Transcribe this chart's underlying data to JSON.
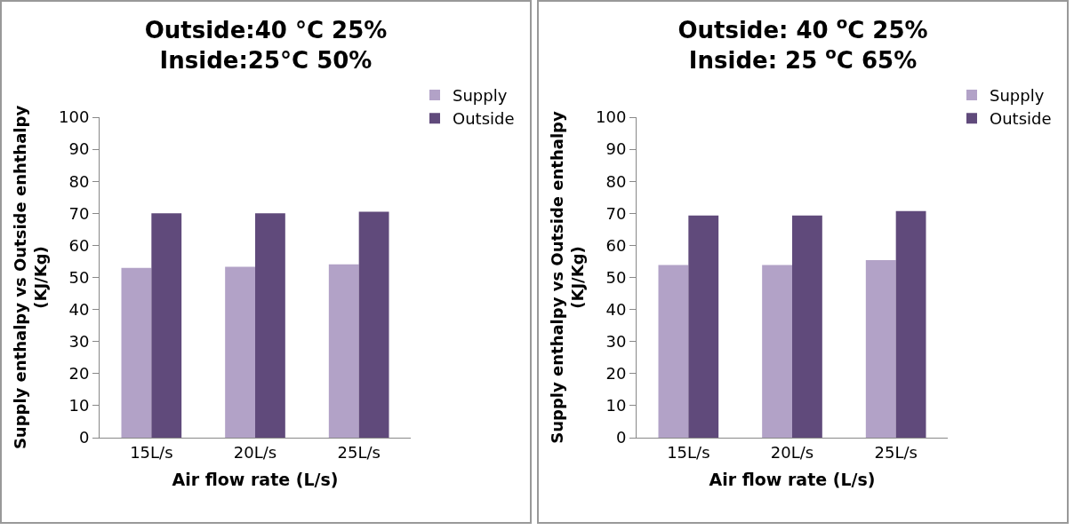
{
  "chart_data": [
    {
      "type": "bar",
      "title": "Outside:40 °C 25%\nInside:25°C 50%",
      "xlabel": "Air flow rate (L/s)",
      "ylabel": "Supply enthalpy vs Outside enhthalpy\n(KJ/Kg)",
      "categories": [
        "15L/s",
        "20L/s",
        "25L/s"
      ],
      "series": [
        {
          "name": "Supply",
          "color": "#b2a2c7",
          "values": [
            53,
            53.3,
            54.1
          ]
        },
        {
          "name": "Outside",
          "color": "#604a7b",
          "values": [
            70,
            70,
            70.5
          ]
        }
      ],
      "ylim": [
        0,
        100
      ],
      "yticks": [
        0,
        10,
        20,
        30,
        40,
        50,
        60,
        70,
        80,
        90,
        100
      ],
      "grid": false,
      "legend": "top right"
    },
    {
      "type": "bar",
      "title": "Outside: 40 $^{o}$C 25%\nInside: 25 $^{o}$C 65%",
      "xlabel": "Air flow rate (L/s)",
      "ylabel": "Supply enthalpy vs Outside enthalpy\n(KJ/Kg)",
      "categories": [
        "15L/s",
        "20L/s",
        "25L/s"
      ],
      "series": [
        {
          "name": "Supply",
          "color": "#b2a2c7",
          "values": [
            53.9,
            53.9,
            55.4
          ]
        },
        {
          "name": "Outside",
          "color": "#604a7b",
          "values": [
            69.3,
            69.3,
            70.7
          ]
        }
      ],
      "ylim": [
        0,
        100
      ],
      "yticks": [
        0,
        10,
        20,
        30,
        40,
        50,
        60,
        70,
        80,
        90,
        100
      ],
      "grid": false,
      "legend": "top right"
    }
  ]
}
